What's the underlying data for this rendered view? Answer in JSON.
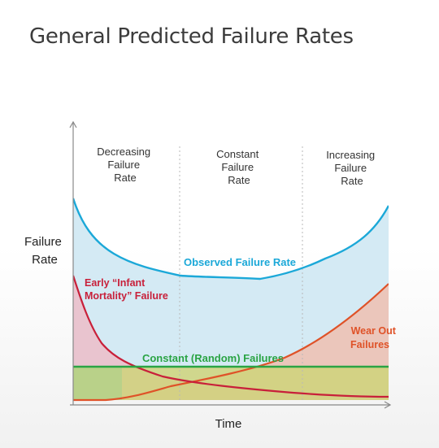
{
  "title": "General Predicted Failure Rates",
  "y_axis_label": [
    "Failure",
    "Rate"
  ],
  "x_axis_label": "Time",
  "regions": [
    [
      "Decreasing",
      "Failure",
      "Rate"
    ],
    [
      "Constant",
      "Failure",
      "Rate"
    ],
    [
      "Increasing",
      "Failure",
      "Rate"
    ]
  ],
  "curves": {
    "observed": "Observed Failure Rate",
    "early": [
      "Early “Infant",
      "Mortality” Failure"
    ],
    "constant": "Constant (Random) Failures",
    "wearout": [
      "Wear Out",
      "Failures"
    ]
  },
  "colors": {
    "observed": "#1ba8d8",
    "early": "#c8203a",
    "constant": "#2aa444",
    "wearout": "#df5228"
  }
}
